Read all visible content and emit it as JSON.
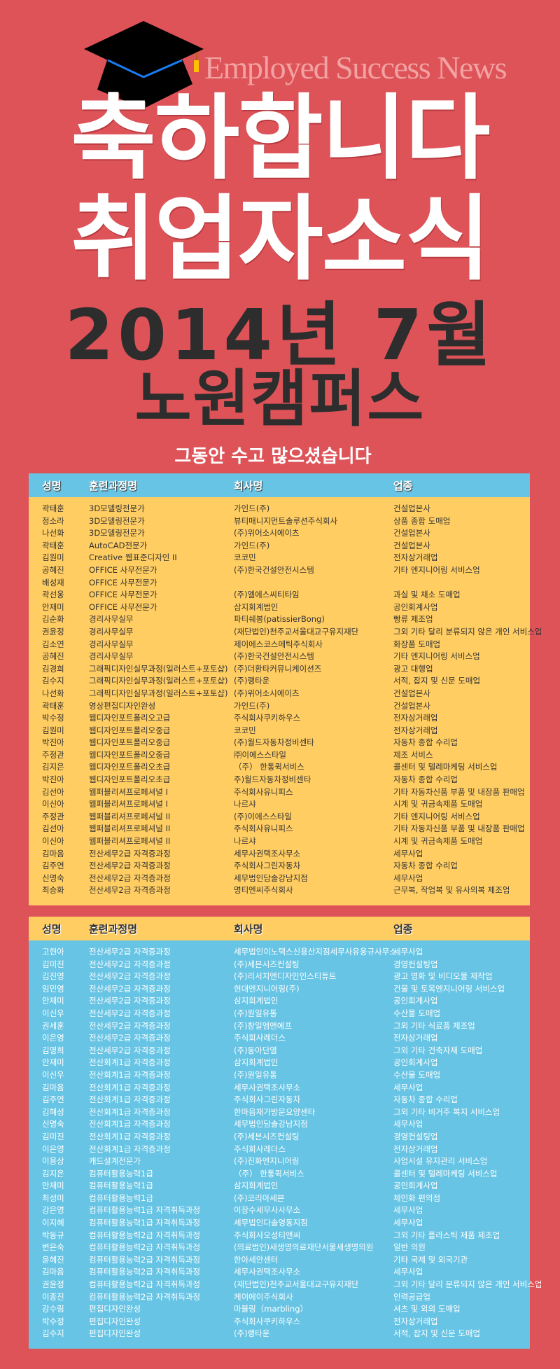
{
  "brand": "Employed Success News",
  "title_line1": "축하합니다",
  "title_line2": "취업자소식",
  "date": "2014년 7월",
  "campus": "노원캠퍼스",
  "subtitle": "그동안 수고 많으셨습니다",
  "colors": {
    "background": "#dd5358",
    "blue": "#67c4e4",
    "yellow": "#ffcd62",
    "dark_text": "#2d2d2d"
  },
  "icons": [
    "graduation-cap-icon"
  ],
  "columns": [
    "성명",
    "훈련과정명",
    "회사명",
    "업종"
  ],
  "table1": [
    [
      "곽태훈",
      "3D모델링전문가",
      "가인드(주)",
      "건설업본사"
    ],
    [
      "정소라",
      "3D모델링전문가",
      "뷰티매니지먼트솔루션주식회사",
      "상품 종합 도매업"
    ],
    [
      "나선화",
      "3D모델링전문가",
      "(주)위어소시에이츠",
      "건설업본사"
    ],
    [
      "곽태훈",
      "AutoCAD전문가",
      "가인드(주)",
      "건설업본사"
    ],
    [
      "김원미",
      "Creative 웹표준디자인 II",
      "코코민",
      "전자상거래업"
    ],
    [
      "공혜진",
      "OFFICE 사무전문가",
      "(주)한국건설안전시스템",
      "기타 엔지니어링 서비스업"
    ],
    [
      "배성재",
      "OFFICE 사무전문가",
      "",
      ""
    ],
    [
      "곽선웅",
      "OFFICE 사무전문가",
      "(주)엘에스씨티타임",
      "과실 및 채소 도매업"
    ],
    [
      "안재미",
      "OFFICE 사무전문가",
      "삼지회계법인",
      "공인회계사업"
    ],
    [
      "김순화",
      "경리사무실무",
      "파티쉐봉(patissierBong)",
      "빵류 제조업"
    ],
    [
      "권윤정",
      "경리사무실무",
      "(재단법인)천주교서울대교구유지재단",
      "그외 기타 달리 분류되지 않은 개인 서비스업"
    ],
    [
      "김소연",
      "경리사무실무",
      "제이에스코스메틱주식회사",
      "화장품 도매업"
    ],
    [
      "공혜진",
      "경리사무실무",
      "(주)한국건설안전시스템",
      "기타 엔지니어링 서비스업"
    ],
    [
      "김경희",
      "그래픽디자인실무과정(일러스트+포토샵)",
      "(주)더환타커뮤니케이션즈",
      "광고 대행업"
    ],
    [
      "김수지",
      "그래픽디자인실무과정(일러스트+포토샵)",
      "(주)랭타운",
      "서적, 잡지 및 신문 도매업"
    ],
    [
      "나선화",
      "그래픽디자인실무과정(일러스트+포토샵)",
      "(주)위어소시에이츠",
      "건설업본사"
    ],
    [
      "곽태훈",
      "영상편집디자인완성",
      "가인드(주)",
      "건설업본사"
    ],
    [
      "박수정",
      "웹디자인포트폴리오고급",
      "주식회사쿠키하우스",
      "전자상거래업"
    ],
    [
      "김원미",
      "웹디자인포트폴리오중급",
      "코코민",
      "전자상거래업"
    ],
    [
      "박진아",
      "웹디자인포트폴리오중급",
      "(주)월드자동차정비센타",
      "자동차 종합 수리업"
    ],
    [
      "주정관",
      "웹디자인포트폴리오중급",
      "㈜이에스스타일",
      "제조 서비스"
    ],
    [
      "김지은",
      "웹디자인포트폴리오초급",
      "（주） 한통퀵서비스",
      "콜센터 및 텔레마케팅 서비스업"
    ],
    [
      "박진아",
      "웹디자인포트폴리오초급",
      "주)월드자동차정비센타",
      "자동차 종합 수리업"
    ],
    [
      "김선아",
      "웹퍼블리셔프로페셔널 I",
      "주식회사유니피스",
      "기타 자동차신품 부품 및 내장품 판매업"
    ],
    [
      "이신아",
      "웹퍼블리셔프로페셔널 I",
      "나르샤",
      "시계 및 귀금속제품 도매업"
    ],
    [
      "주정관",
      "웹퍼블리셔프로페셔널 II",
      "(주)이에스스타일",
      "기타 엔지니어링 서비스업"
    ],
    [
      "김선아",
      "웹퍼블리셔프로페셔널 II",
      "주식회사유니피스",
      "기타 자동차신품 부품 및 내장품 판매업"
    ],
    [
      "이신아",
      "웹퍼블리셔프로페셔널 II",
      "나르샤",
      "시계 및 귀금속제품 도매업"
    ],
    [
      "김마음",
      "전산세무2급 자격증과정",
      "세무사권택조사무소",
      "세무사업"
    ],
    [
      "김주연",
      "전산세무2급 자격증과정",
      "주식회사그린자동차",
      "자동차 종합 수리업"
    ],
    [
      "신명숙",
      "전산세무2급 자격증과정",
      "세무법인담솔강남지점",
      "세무사업"
    ],
    [
      "최승화",
      "전산세무2급 자격증과정",
      "명티엔씨주식회사",
      "근무복, 작업복 및 유사의복 제조업"
    ]
  ],
  "table2": [
    [
      "고현아",
      "전산세무2급 자격증과정",
      "세무법인이노택스신용산지점세무사유웅규사무소",
      "세무사업"
    ],
    [
      "김미진",
      "전산세무2급 자격증과정",
      "(주)세븐시즈컨설팅",
      "경영컨설팅업"
    ],
    [
      "김진영",
      "전산세무2급 자격증과정",
      "(주)리서치앤디자인인스티튜트",
      "광고 영화 및 비디오물 제작업"
    ],
    [
      "임민영",
      "전산세무2급 자격증과정",
      "현대엔지니어링(주)",
      "건물 및 토목엔지니어링 서비스업"
    ],
    [
      "안재미",
      "전산세무2급 자격증과정",
      "삼지회계법인",
      "공인회계사업"
    ],
    [
      "이신우",
      "전산세무2급 자격증과정",
      "(주)원일유통",
      "수산물 도매업"
    ],
    [
      "권세훈",
      "전산세무2급 자격증과정",
      "(주)창일엠앤에프",
      "그외 기타 식료품 제조업"
    ],
    [
      "이은영",
      "전산세무2급 자격증과정",
      "주식회사레더스",
      "전자상거래업"
    ],
    [
      "김명희",
      "전산세무2급 자격증과정",
      "(주)동아단열",
      "그외 기타 건축자재 도매업"
    ],
    [
      "안재미",
      "전산회계1급 자격증과정",
      "삼지회계법인",
      "공인회계사업"
    ],
    [
      "이신우",
      "전산회계1급 자격증과정",
      "(주)원일유통",
      "수산물 도매업"
    ],
    [
      "김마음",
      "전산회계1급 자격증과정",
      "세무사권택조사무소",
      "세무사업"
    ],
    [
      "김주연",
      "전산회계1급 자격증과정",
      "주식회사그린자동차",
      "자동차 종합 수리업"
    ],
    [
      "김혜성",
      "전산회계1급 자격증과정",
      "한마음재가방문요양센타",
      "그외 기타 비거주 복지 서비스업"
    ],
    [
      "신명숙",
      "전산회계1급 자격증과정",
      "세무법인담솔강남지점",
      "세무사업"
    ],
    [
      "김미진",
      "전산회계1급 자격증과정",
      "(주)세븐시즈컨설팅",
      "경영컨설팅업"
    ],
    [
      "이은영",
      "전산회계1급 자격증과정",
      "주식회사레더스",
      "전자상거래업"
    ],
    [
      "이용상",
      "캐드설계전문가",
      "(주)진화엔지니어링",
      "사업시설 유지관리 서비스업"
    ],
    [
      "김지은",
      "컴퓨터활용능력1급",
      "（주） 한통퀵서비스",
      "콜센터 및 텔레마케팅 서비스업"
    ],
    [
      "안재미",
      "컴퓨터활용능력1급",
      "삼지회계법인",
      "공인회계사업"
    ],
    [
      "최성미",
      "컴퓨터활용능력1급",
      "(주)코리아세븐",
      "체인화 편의점"
    ],
    [
      "강은영",
      "컴퓨터활용능력1급 자격취득과정",
      "이장수세무사사무소",
      "세무사업"
    ],
    [
      "이지혜",
      "컴퓨터활용능력1급 자격취득과정",
      "세무법인다솔영동지점",
      "세무사업"
    ],
    [
      "박동규",
      "컴퓨터활용능력2급 자격취득과정",
      "주식회사오성티앤씨",
      "그외 기타 플라스틱 제품 제조업"
    ],
    [
      "변은숙",
      "컴퓨터활용능력2급 자격취득과정",
      "(의료법인)새생명의료재단서울새생명의원",
      "일반 의원"
    ],
    [
      "윤혜진",
      "컴퓨터활용능력2급 자격취득과정",
      "한아세안센터",
      "기타 국제 및 외국기관"
    ],
    [
      "김마음",
      "컴퓨터활용능력2급 자격취득과정",
      "세무사권택조사무소",
      "세무사업"
    ],
    [
      "권윤정",
      "컴퓨터활용능력2급 자격취득과정",
      "(재단법인)천주교서울대교구유지재단",
      "그외 기타 달리 분류되지 않은 개인 서비스업"
    ],
    [
      "이종진",
      "컴퓨터활용능력2급 자격취득과정",
      "케이에이주식회사",
      "인력공급업"
    ],
    [
      "강수림",
      "편집디자인완성",
      "마블링（marbling）",
      "셔츠 및 외의 도매업"
    ],
    [
      "박수정",
      "편집디자인완성",
      "주식회사쿠키하우스",
      "전자상거래업"
    ],
    [
      "김수지",
      "편집디자인완성",
      "(주)랭타운",
      "서적, 잡지 및 신문 도매업"
    ]
  ]
}
